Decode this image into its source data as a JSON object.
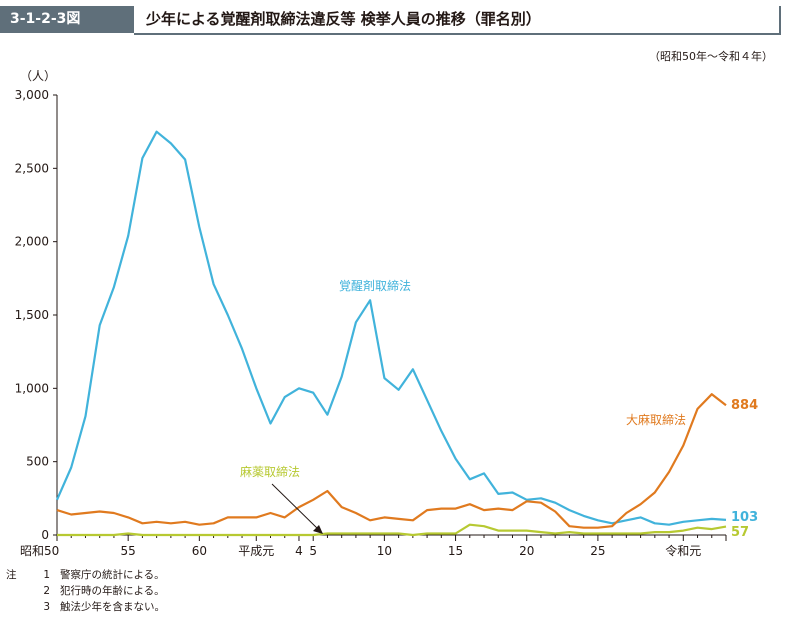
{
  "header": {
    "figure_no": "3-1-2-3図",
    "title": "少年による覚醒剤取締法違反等 検挙人員の推移（罪名別）",
    "period": "（昭和50年～令和４年）"
  },
  "chart_data": {
    "type": "line",
    "title": "少年による覚醒剤取締法違反等 検挙人員の推移（罪名別）",
    "ylabel": "（人）",
    "ylim": [
      0,
      3000
    ],
    "yticks": [
      "0",
      "500",
      "1,000",
      "1,500",
      "2,000",
      "2,500",
      "3,000"
    ],
    "grid": false,
    "x": [
      "昭和50",
      "51",
      "52",
      "53",
      "54",
      "55",
      "56",
      "57",
      "58",
      "59",
      "60",
      "61",
      "62",
      "63",
      "平成元",
      "2",
      "3",
      "4",
      "5",
      "6",
      "7",
      "8",
      "9",
      "10",
      "11",
      "12",
      "13",
      "14",
      "15",
      "16",
      "17",
      "18",
      "19",
      "20",
      "21",
      "22",
      "23",
      "24",
      "25",
      "26",
      "27",
      "28",
      "29",
      "30",
      "令和元",
      "2",
      "3",
      "4"
    ],
    "xtick_labels": [
      "昭和50",
      "55",
      "60",
      "平成元",
      "5",
      "10",
      "15",
      "20",
      "25",
      "令和元",
      "4"
    ],
    "series": [
      {
        "name": "覚醒剤取締法",
        "color": "#41b3db",
        "end_label": "103",
        "values": [
          240,
          460,
          810,
          1430,
          1690,
          2040,
          2570,
          2750,
          2670,
          2560,
          2100,
          1710,
          1500,
          1270,
          1000,
          760,
          940,
          1000,
          970,
          820,
          1080,
          1450,
          1600,
          1070,
          990,
          1130,
          920,
          710,
          520,
          380,
          420,
          280,
          290,
          240,
          250,
          220,
          170,
          130,
          100,
          80,
          100,
          120,
          80,
          70,
          90,
          100,
          110,
          103
        ]
      },
      {
        "name": "大麻取締法",
        "color": "#e07a1f",
        "end_label": "884",
        "values": [
          170,
          140,
          150,
          160,
          150,
          120,
          80,
          90,
          80,
          90,
          70,
          80,
          120,
          120,
          120,
          150,
          120,
          190,
          240,
          300,
          190,
          150,
          100,
          120,
          110,
          100,
          170,
          180,
          180,
          210,
          170,
          180,
          170,
          230,
          220,
          160,
          60,
          50,
          50,
          60,
          150,
          210,
          290,
          430,
          610,
          860,
          960,
          884
        ]
      },
      {
        "name": "麻薬取締法",
        "color": "#b7c932",
        "end_label": "57",
        "values": [
          0,
          0,
          0,
          0,
          0,
          10,
          0,
          0,
          0,
          0,
          0,
          0,
          0,
          0,
          0,
          0,
          0,
          0,
          0,
          10,
          10,
          10,
          10,
          10,
          10,
          0,
          10,
          10,
          10,
          70,
          60,
          30,
          30,
          30,
          20,
          10,
          20,
          10,
          10,
          10,
          10,
          10,
          20,
          20,
          30,
          50,
          40,
          57
        ]
      }
    ],
    "annotations": [
      {
        "text": "覚醒剤取締法",
        "series": "覚醒剤取締法"
      },
      {
        "text": "大麻取締法",
        "series": "大麻取締法"
      },
      {
        "text": "麻薬取締法",
        "series": "麻薬取締法"
      }
    ]
  },
  "notes": {
    "head": "注",
    "items": [
      {
        "num": "1",
        "text": "警察庁の統計による。"
      },
      {
        "num": "2",
        "text": "犯行時の年齢による。"
      },
      {
        "num": "3",
        "text": "触法少年を含まない。"
      }
    ]
  }
}
